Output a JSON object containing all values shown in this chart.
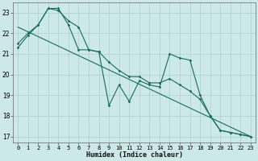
{
  "xlabel": "Humidex (Indice chaleur)",
  "bg_color": "#cce8e8",
  "grid_color": "#aacfcf",
  "line_color": "#1a6b5e",
  "xlim": [
    -0.5,
    23.5
  ],
  "ylim": [
    16.7,
    23.5
  ],
  "yticks": [
    17,
    18,
    19,
    20,
    21,
    22,
    23
  ],
  "xticks": [
    0,
    1,
    2,
    3,
    4,
    5,
    6,
    7,
    8,
    9,
    10,
    11,
    12,
    13,
    14,
    15,
    16,
    17,
    18,
    19,
    20,
    21,
    22,
    23
  ],
  "line1_x": [
    0,
    1,
    2,
    3,
    4,
    5,
    6,
    7,
    8,
    9,
    10,
    11,
    12,
    13,
    14,
    15,
    16,
    17,
    18,
    19,
    20,
    21,
    22,
    23
  ],
  "line1_y": [
    21.3,
    21.9,
    22.4,
    23.2,
    23.1,
    22.6,
    22.3,
    21.2,
    21.1,
    18.5,
    19.5,
    18.7,
    19.7,
    19.5,
    19.4,
    21.0,
    20.8,
    20.7,
    19.0,
    18.0,
    17.3,
    17.2,
    17.1,
    17.0
  ],
  "line2_x": [
    0,
    1,
    2,
    3,
    4,
    5,
    6,
    7,
    8,
    9,
    10,
    11,
    12,
    13,
    14,
    15,
    16,
    17,
    18,
    19,
    20,
    21,
    22,
    23
  ],
  "line2_y": [
    21.5,
    22.0,
    22.4,
    23.2,
    23.2,
    22.4,
    21.2,
    21.2,
    21.1,
    20.6,
    20.2,
    19.9,
    19.9,
    19.6,
    19.6,
    19.8,
    19.5,
    19.2,
    18.8,
    18.0,
    17.3,
    17.2,
    17.1,
    17.0
  ],
  "line3_x": [
    0,
    23
  ],
  "line3_y": [
    22.3,
    17.0
  ],
  "xlabel_fontsize": 6.0,
  "xlabel_fontweight": "bold",
  "tick_fontsize": 5.0,
  "ytick_fontsize": 5.5,
  "marker": "D",
  "markersize": 1.8,
  "linewidth": 0.8
}
